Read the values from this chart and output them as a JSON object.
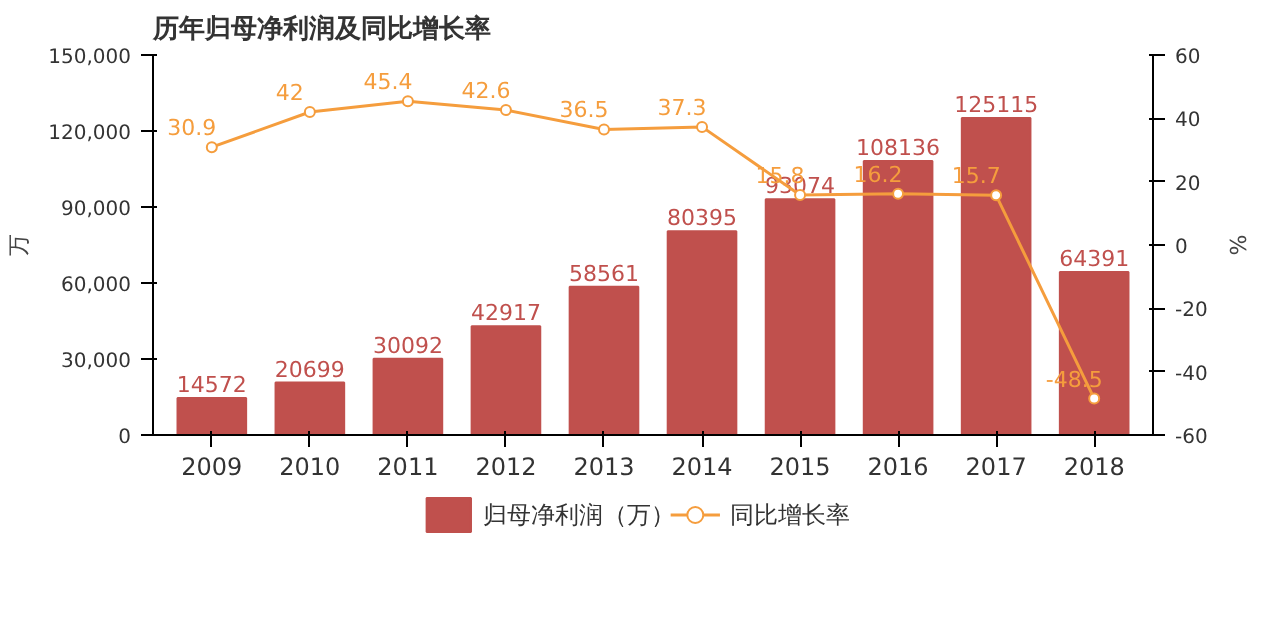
{
  "chart_data": {
    "type": "bar",
    "title": "历年归母净利润及同比增长率",
    "ylabel": "万",
    "y2label": "%",
    "categories": [
      "2009",
      "2010",
      "2011",
      "2012",
      "2013",
      "2014",
      "2015",
      "2016",
      "2017",
      "2018"
    ],
    "series": [
      {
        "name": "归母净利润（万）",
        "color": "#c0504d",
        "values": [
          14572,
          20699,
          30092,
          42917,
          58561,
          80395,
          93074,
          108136,
          125115,
          64391
        ]
      },
      {
        "name": "同比增长率",
        "type": "line",
        "axis": "y2",
        "color": "#f59d3d",
        "marker": "circle",
        "values": [
          30.9,
          42,
          45.4,
          42.6,
          36.5,
          37.3,
          15.8,
          16.2,
          15.7,
          -48.5
        ]
      }
    ],
    "ylim": [
      0,
      150000
    ],
    "yticks": [
      {
        "value": 0,
        "label": "0"
      },
      {
        "value": 30000,
        "label": "30,000"
      },
      {
        "value": 60000,
        "label": "60,000"
      },
      {
        "value": 90000,
        "label": "90,000"
      },
      {
        "value": 120000,
        "label": "120,000"
      },
      {
        "value": 150000,
        "label": "150,000"
      }
    ],
    "y2lim": [
      -60,
      60
    ],
    "y2ticks": [
      -60,
      -40,
      -20,
      0,
      20,
      40,
      60
    ],
    "data_labels": true,
    "grid": false,
    "legend": "bottom"
  }
}
